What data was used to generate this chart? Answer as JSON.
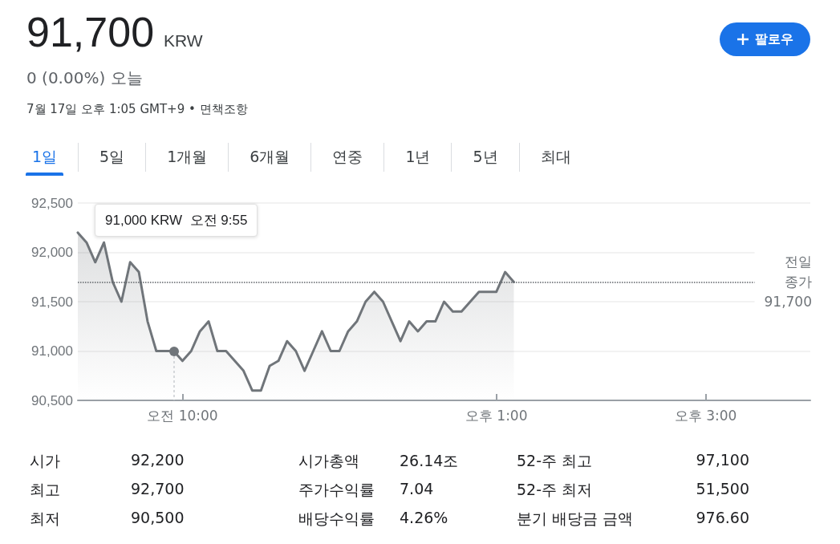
{
  "chart_data": {
    "type": "area",
    "title": "91,700",
    "subtitle": "0 (0.00%) 오늘",
    "annotations": [
      "KRW",
      "7월 17일 오후 1:05 GMT+9 • 면책조항",
      "1일",
      "5일",
      "1개월",
      "6개월",
      "연중",
      "1년",
      "5년",
      "최대",
      "팔로우",
      "시가",
      "92,200",
      "최고",
      "92,700",
      "최저",
      "90,500",
      "시가총액",
      "26.14조",
      "주가수익률",
      "7.04",
      "배당수익률",
      "4.26%",
      "52-주 최고",
      "97,100",
      "52-주 최저",
      "51,500",
      "분기 배당금 금액",
      "976.60",
      "91,000 KRW  오전 9:55"
    ],
    "categories": [
      null,
      null,
      null,
      null,
      null,
      null,
      null,
      null,
      null,
      null,
      null,
      null,
      "오전 10:00",
      null,
      null,
      null,
      null,
      null,
      null,
      null,
      null,
      null,
      null,
      null,
      null,
      null,
      null,
      null,
      null,
      null,
      null,
      null,
      null,
      null,
      null,
      null,
      null,
      null,
      null,
      null,
      null,
      null,
      null,
      null,
      null,
      null,
      null,
      null,
      "오후 1:00",
      null,
      null,
      null,
      null,
      null,
      null,
      null,
      null,
      null,
      null,
      null,
      null,
      null,
      null,
      null,
      null,
      null,
      null,
      null,
      null,
      null,
      null,
      null,
      "오후 3:00",
      null,
      null,
      null,
      null,
      null,
      null,
      null,
      null,
      null,
      null,
      null,
      null
    ],
    "series": [
      {
        "color": "#70757a",
        "values": [
          92200,
          92100,
          91900,
          92100,
          91700,
          91500,
          91900,
          91800,
          91300,
          91000,
          91000,
          91000,
          90900,
          91000,
          91200,
          91300,
          91000,
          91000,
          90900,
          90800,
          90600,
          90600,
          90850,
          90900,
          91100,
          91000,
          90800,
          91000,
          91200,
          91000,
          91000,
          91200,
          91300,
          91500,
          91600,
          91500,
          91300,
          91100,
          91300,
          91200,
          91300,
          91300,
          91500,
          91400,
          91400,
          91500,
          91600,
          91600,
          91600,
          91800,
          91700,
          null,
          null,
          null,
          null,
          null,
          null,
          null,
          null,
          null,
          null,
          null,
          null,
          null,
          null,
          null,
          null,
          null,
          null,
          null,
          null,
          null,
          null,
          null,
          null,
          null,
          null,
          null,
          null,
          null,
          null,
          null,
          null,
          null,
          null
        ]
      }
    ],
    "ylim": [
      90500,
      92500
    ],
    "yticks": [
      {
        "value": 90500,
        "label": "90,500"
      },
      {
        "value": 91000,
        "label": "91,000"
      },
      {
        "value": 91500,
        "label": "91,500"
      },
      {
        "value": 92000,
        "label": "92,000"
      },
      {
        "value": 92500,
        "label": "92,500"
      }
    ],
    "ref_lines": [
      {
        "axis": "y",
        "value": 91700,
        "label": "전일 종가 91,700",
        "line_style": "dotted",
        "color": "#5f6368"
      }
    ],
    "grid": "y",
    "marker": "none",
    "line_style": "solid"
  }
}
